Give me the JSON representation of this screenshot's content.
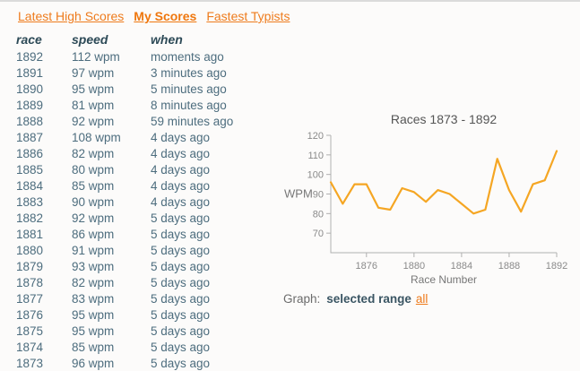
{
  "tabs": [
    {
      "label": "Latest High Scores",
      "active": false
    },
    {
      "label": "My Scores",
      "active": true
    },
    {
      "label": "Fastest Typists",
      "active": false
    }
  ],
  "table": {
    "headers": [
      "race",
      "speed",
      "when"
    ],
    "rows": [
      {
        "race": "1892",
        "speed": "112 wpm",
        "when": "moments ago"
      },
      {
        "race": "1891",
        "speed": "97 wpm",
        "when": "3 minutes ago"
      },
      {
        "race": "1890",
        "speed": "95 wpm",
        "when": "5 minutes ago"
      },
      {
        "race": "1889",
        "speed": "81 wpm",
        "when": "8 minutes ago"
      },
      {
        "race": "1888",
        "speed": "92 wpm",
        "when": "59 minutes ago"
      },
      {
        "race": "1887",
        "speed": "108 wpm",
        "when": "4 days ago"
      },
      {
        "race": "1886",
        "speed": "82 wpm",
        "when": "4 days ago"
      },
      {
        "race": "1885",
        "speed": "80 wpm",
        "when": "4 days ago"
      },
      {
        "race": "1884",
        "speed": "85 wpm",
        "when": "4 days ago"
      },
      {
        "race": "1883",
        "speed": "90 wpm",
        "when": "4 days ago"
      },
      {
        "race": "1882",
        "speed": "92 wpm",
        "when": "5 days ago"
      },
      {
        "race": "1881",
        "speed": "86 wpm",
        "when": "5 days ago"
      },
      {
        "race": "1880",
        "speed": "91 wpm",
        "when": "5 days ago"
      },
      {
        "race": "1879",
        "speed": "93 wpm",
        "when": "5 days ago"
      },
      {
        "race": "1878",
        "speed": "82 wpm",
        "when": "5 days ago"
      },
      {
        "race": "1877",
        "speed": "83 wpm",
        "when": "5 days ago"
      },
      {
        "race": "1876",
        "speed": "95 wpm",
        "when": "5 days ago"
      },
      {
        "race": "1875",
        "speed": "95 wpm",
        "when": "5 days ago"
      },
      {
        "race": "1874",
        "speed": "85 wpm",
        "when": "5 days ago"
      },
      {
        "race": "1873",
        "speed": "96 wpm",
        "when": "5 days ago"
      }
    ]
  },
  "chart_data": {
    "type": "line",
    "title": "Races 1873 - 1892",
    "xlabel": "Race Number",
    "ylabel": "WPM",
    "x": [
      1873,
      1874,
      1875,
      1876,
      1877,
      1878,
      1879,
      1880,
      1881,
      1882,
      1883,
      1884,
      1885,
      1886,
      1887,
      1888,
      1889,
      1890,
      1891,
      1892
    ],
    "values": [
      96,
      85,
      95,
      95,
      83,
      82,
      93,
      91,
      86,
      92,
      90,
      85,
      80,
      82,
      108,
      92,
      81,
      95,
      97,
      112
    ],
    "xticks": [
      1876,
      1880,
      1884,
      1888,
      1892
    ],
    "yticks": [
      70,
      80,
      90,
      100,
      110,
      120
    ],
    "ylim": [
      60,
      120
    ],
    "grid": false,
    "legend": "none",
    "line_color": "#f5a623",
    "axis_color": "#b0b0b0",
    "tick_text_color": "#8a8a8a",
    "title_color": "#555555",
    "label_color": "#777777"
  },
  "graph_footer": {
    "label": "Graph:",
    "selected_option": "selected range",
    "all_link": "all"
  },
  "colors": {
    "accent": "#ee7b1c",
    "chart_line": "#f5a623",
    "row_text": "#4d6d7e",
    "header_text": "#2d4a57"
  }
}
